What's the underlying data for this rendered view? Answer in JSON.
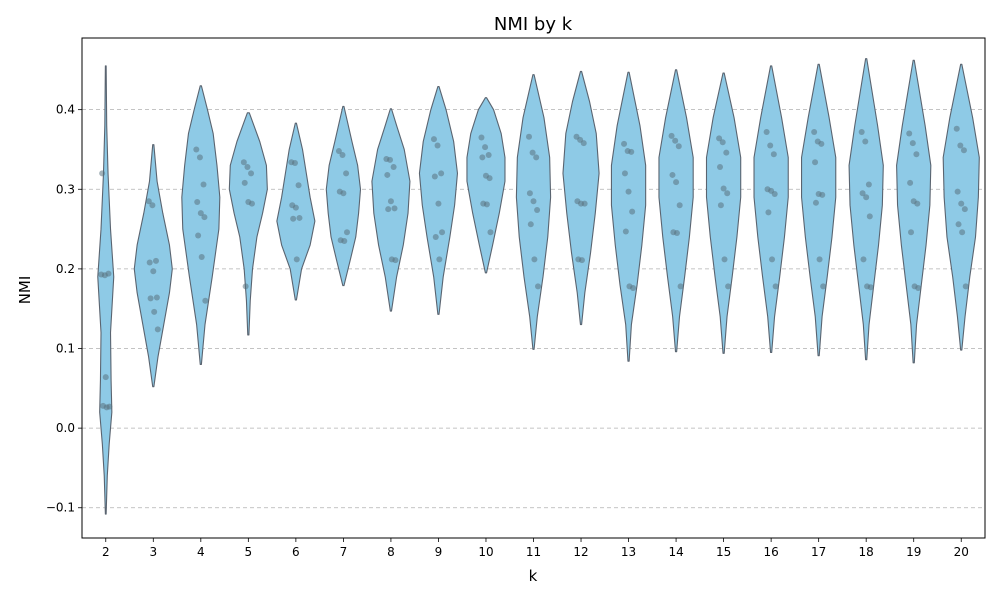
{
  "chart_data": {
    "type": "violin",
    "title": "NMI by k",
    "xlabel": "k",
    "ylabel": "NMI",
    "ylim": [
      -0.138,
      0.49
    ],
    "yticks": [
      -0.1,
      0.0,
      0.1,
      0.2,
      0.3,
      0.4
    ],
    "ytick_labels": [
      "−0.1",
      "0.0",
      "0.1",
      "0.2",
      "0.3",
      "0.4"
    ],
    "grid": "y-dashed",
    "colors": {
      "violin_fill": "#8ecae6",
      "violin_edge": "#5a6470",
      "point": "#5a7380"
    },
    "categories": [
      "2",
      "3",
      "4",
      "5",
      "6",
      "7",
      "8",
      "9",
      "10",
      "11",
      "12",
      "13",
      "14",
      "15",
      "16",
      "17",
      "18",
      "19",
      "20"
    ],
    "violins": [
      {
        "k": "2",
        "min": -0.108,
        "max": 0.455,
        "profile": [
          [
            -0.108,
            0.02
          ],
          [
            -0.06,
            0.08
          ],
          [
            -0.02,
            0.18
          ],
          [
            0.02,
            0.32
          ],
          [
            0.06,
            0.28
          ],
          [
            0.12,
            0.25
          ],
          [
            0.19,
            0.42
          ],
          [
            0.25,
            0.25
          ],
          [
            0.32,
            0.12
          ],
          [
            0.38,
            0.05
          ],
          [
            0.455,
            0.02
          ]
        ]
      },
      {
        "k": "3",
        "min": 0.052,
        "max": 0.356,
        "profile": [
          [
            0.052,
            0.03
          ],
          [
            0.09,
            0.25
          ],
          [
            0.13,
            0.55
          ],
          [
            0.17,
            0.85
          ],
          [
            0.2,
            1.0
          ],
          [
            0.23,
            0.85
          ],
          [
            0.27,
            0.5
          ],
          [
            0.31,
            0.2
          ],
          [
            0.356,
            0.03
          ]
        ]
      },
      {
        "k": "4",
        "min": 0.08,
        "max": 0.43,
        "profile": [
          [
            0.08,
            0.03
          ],
          [
            0.13,
            0.22
          ],
          [
            0.19,
            0.6
          ],
          [
            0.25,
            0.95
          ],
          [
            0.29,
            1.0
          ],
          [
            0.33,
            0.85
          ],
          [
            0.37,
            0.65
          ],
          [
            0.4,
            0.35
          ],
          [
            0.43,
            0.03
          ]
        ]
      },
      {
        "k": "5",
        "min": 0.117,
        "max": 0.396,
        "profile": [
          [
            0.117,
            0.03
          ],
          [
            0.16,
            0.1
          ],
          [
            0.2,
            0.22
          ],
          [
            0.24,
            0.45
          ],
          [
            0.27,
            0.75
          ],
          [
            0.3,
            1.0
          ],
          [
            0.33,
            0.95
          ],
          [
            0.36,
            0.6
          ],
          [
            0.396,
            0.05
          ]
        ]
      },
      {
        "k": "6",
        "min": 0.161,
        "max": 0.383,
        "profile": [
          [
            0.161,
            0.03
          ],
          [
            0.2,
            0.3
          ],
          [
            0.23,
            0.75
          ],
          [
            0.26,
            1.0
          ],
          [
            0.29,
            0.75
          ],
          [
            0.32,
            0.55
          ],
          [
            0.35,
            0.35
          ],
          [
            0.383,
            0.03
          ]
        ]
      },
      {
        "k": "7",
        "min": 0.179,
        "max": 0.404,
        "profile": [
          [
            0.179,
            0.03
          ],
          [
            0.21,
            0.35
          ],
          [
            0.24,
            0.65
          ],
          [
            0.27,
            0.8
          ],
          [
            0.3,
            0.9
          ],
          [
            0.33,
            0.75
          ],
          [
            0.36,
            0.45
          ],
          [
            0.404,
            0.03
          ]
        ]
      },
      {
        "k": "8",
        "min": 0.147,
        "max": 0.401,
        "profile": [
          [
            0.147,
            0.03
          ],
          [
            0.19,
            0.3
          ],
          [
            0.23,
            0.65
          ],
          [
            0.27,
            0.9
          ],
          [
            0.31,
            1.0
          ],
          [
            0.35,
            0.7
          ],
          [
            0.38,
            0.3
          ],
          [
            0.401,
            0.03
          ]
        ]
      },
      {
        "k": "9",
        "min": 0.143,
        "max": 0.429,
        "profile": [
          [
            0.143,
            0.03
          ],
          [
            0.19,
            0.25
          ],
          [
            0.24,
            0.6
          ],
          [
            0.28,
            0.85
          ],
          [
            0.32,
            1.0
          ],
          [
            0.36,
            0.8
          ],
          [
            0.4,
            0.4
          ],
          [
            0.429,
            0.03
          ]
        ]
      },
      {
        "k": "10",
        "min": 0.195,
        "max": 0.415,
        "profile": [
          [
            0.195,
            0.03
          ],
          [
            0.23,
            0.35
          ],
          [
            0.27,
            0.7
          ],
          [
            0.31,
            1.0
          ],
          [
            0.34,
            1.0
          ],
          [
            0.37,
            0.8
          ],
          [
            0.4,
            0.4
          ],
          [
            0.415,
            0.03
          ]
        ]
      },
      {
        "k": "11",
        "min": 0.099,
        "max": 0.444,
        "profile": [
          [
            0.099,
            0.03
          ],
          [
            0.14,
            0.2
          ],
          [
            0.19,
            0.5
          ],
          [
            0.24,
            0.75
          ],
          [
            0.29,
            0.9
          ],
          [
            0.34,
            0.85
          ],
          [
            0.39,
            0.55
          ],
          [
            0.444,
            0.03
          ]
        ]
      },
      {
        "k": "12",
        "min": 0.13,
        "max": 0.448,
        "profile": [
          [
            0.13,
            0.03
          ],
          [
            0.17,
            0.2
          ],
          [
            0.22,
            0.5
          ],
          [
            0.27,
            0.75
          ],
          [
            0.32,
            0.95
          ],
          [
            0.37,
            0.8
          ],
          [
            0.41,
            0.45
          ],
          [
            0.448,
            0.03
          ]
        ]
      },
      {
        "k": "13",
        "min": 0.084,
        "max": 0.447,
        "profile": [
          [
            0.084,
            0.03
          ],
          [
            0.13,
            0.15
          ],
          [
            0.18,
            0.45
          ],
          [
            0.23,
            0.7
          ],
          [
            0.28,
            0.9
          ],
          [
            0.33,
            0.9
          ],
          [
            0.38,
            0.6
          ],
          [
            0.447,
            0.03
          ]
        ]
      },
      {
        "k": "14",
        "min": 0.096,
        "max": 0.45,
        "profile": [
          [
            0.096,
            0.03
          ],
          [
            0.14,
            0.18
          ],
          [
            0.19,
            0.45
          ],
          [
            0.24,
            0.7
          ],
          [
            0.29,
            0.9
          ],
          [
            0.34,
            0.9
          ],
          [
            0.39,
            0.55
          ],
          [
            0.45,
            0.03
          ]
        ]
      },
      {
        "k": "15",
        "min": 0.094,
        "max": 0.446,
        "profile": [
          [
            0.094,
            0.03
          ],
          [
            0.14,
            0.18
          ],
          [
            0.19,
            0.45
          ],
          [
            0.24,
            0.7
          ],
          [
            0.29,
            0.9
          ],
          [
            0.34,
            0.9
          ],
          [
            0.39,
            0.55
          ],
          [
            0.446,
            0.03
          ]
        ]
      },
      {
        "k": "16",
        "min": 0.095,
        "max": 0.455,
        "profile": [
          [
            0.095,
            0.03
          ],
          [
            0.14,
            0.18
          ],
          [
            0.19,
            0.45
          ],
          [
            0.24,
            0.7
          ],
          [
            0.29,
            0.9
          ],
          [
            0.34,
            0.9
          ],
          [
            0.39,
            0.55
          ],
          [
            0.455,
            0.03
          ]
        ]
      },
      {
        "k": "17",
        "min": 0.091,
        "max": 0.457,
        "profile": [
          [
            0.091,
            0.03
          ],
          [
            0.14,
            0.18
          ],
          [
            0.19,
            0.45
          ],
          [
            0.24,
            0.7
          ],
          [
            0.29,
            0.9
          ],
          [
            0.34,
            0.9
          ],
          [
            0.39,
            0.55
          ],
          [
            0.457,
            0.03
          ]
        ]
      },
      {
        "k": "18",
        "min": 0.086,
        "max": 0.464,
        "profile": [
          [
            0.086,
            0.03
          ],
          [
            0.13,
            0.15
          ],
          [
            0.18,
            0.4
          ],
          [
            0.23,
            0.65
          ],
          [
            0.28,
            0.85
          ],
          [
            0.33,
            0.9
          ],
          [
            0.38,
            0.6
          ],
          [
            0.464,
            0.03
          ]
        ]
      },
      {
        "k": "19",
        "min": 0.082,
        "max": 0.462,
        "profile": [
          [
            0.082,
            0.03
          ],
          [
            0.13,
            0.15
          ],
          [
            0.18,
            0.4
          ],
          [
            0.23,
            0.65
          ],
          [
            0.28,
            0.85
          ],
          [
            0.33,
            0.9
          ],
          [
            0.38,
            0.6
          ],
          [
            0.462,
            0.03
          ]
        ]
      },
      {
        "k": "20",
        "min": 0.098,
        "max": 0.457,
        "profile": [
          [
            0.098,
            0.03
          ],
          [
            0.14,
            0.2
          ],
          [
            0.19,
            0.45
          ],
          [
            0.24,
            0.75
          ],
          [
            0.29,
            0.9
          ],
          [
            0.34,
            0.95
          ],
          [
            0.39,
            0.6
          ],
          [
            0.457,
            0.03
          ]
        ]
      }
    ],
    "points": [
      {
        "k": "2",
        "values": [
          0.193,
          0.192,
          0.194,
          0.32,
          0.064,
          0.027,
          0.028,
          0.026
        ]
      },
      {
        "k": "3",
        "values": [
          0.285,
          0.28,
          0.21,
          0.208,
          0.197,
          0.164,
          0.163,
          0.146,
          0.124
        ]
      },
      {
        "k": "4",
        "values": [
          0.35,
          0.34,
          0.306,
          0.284,
          0.27,
          0.265,
          0.242,
          0.215,
          0.16
        ]
      },
      {
        "k": "5",
        "values": [
          0.334,
          0.328,
          0.32,
          0.308,
          0.284,
          0.282,
          0.178
        ]
      },
      {
        "k": "6",
        "values": [
          0.334,
          0.333,
          0.305,
          0.28,
          0.277,
          0.264,
          0.263,
          0.212
        ]
      },
      {
        "k": "7",
        "values": [
          0.348,
          0.343,
          0.32,
          0.297,
          0.295,
          0.246,
          0.236,
          0.235
        ]
      },
      {
        "k": "8",
        "values": [
          0.338,
          0.337,
          0.328,
          0.318,
          0.285,
          0.276,
          0.275,
          0.212,
          0.211
        ]
      },
      {
        "k": "9",
        "values": [
          0.363,
          0.355,
          0.32,
          0.316,
          0.282,
          0.246,
          0.24,
          0.212
        ]
      },
      {
        "k": "10",
        "values": [
          0.365,
          0.353,
          0.343,
          0.34,
          0.317,
          0.314,
          0.282,
          0.281,
          0.246
        ]
      },
      {
        "k": "11",
        "values": [
          0.366,
          0.346,
          0.34,
          0.295,
          0.285,
          0.274,
          0.256,
          0.212,
          0.178
        ]
      },
      {
        "k": "12",
        "values": [
          0.366,
          0.362,
          0.358,
          0.285,
          0.282,
          0.282,
          0.212,
          0.211
        ]
      },
      {
        "k": "13",
        "values": [
          0.357,
          0.348,
          0.347,
          0.32,
          0.297,
          0.272,
          0.247,
          0.178,
          0.176
        ]
      },
      {
        "k": "14",
        "values": [
          0.367,
          0.361,
          0.354,
          0.318,
          0.309,
          0.28,
          0.246,
          0.245,
          0.178
        ]
      },
      {
        "k": "15",
        "values": [
          0.364,
          0.359,
          0.346,
          0.328,
          0.301,
          0.295,
          0.28,
          0.212,
          0.178
        ]
      },
      {
        "k": "16",
        "values": [
          0.372,
          0.355,
          0.344,
          0.3,
          0.298,
          0.294,
          0.271,
          0.212,
          0.178
        ]
      },
      {
        "k": "17",
        "values": [
          0.372,
          0.36,
          0.357,
          0.334,
          0.294,
          0.293,
          0.283,
          0.212,
          0.178
        ]
      },
      {
        "k": "18",
        "values": [
          0.372,
          0.36,
          0.306,
          0.295,
          0.29,
          0.266,
          0.212,
          0.178,
          0.177
        ]
      },
      {
        "k": "19",
        "values": [
          0.37,
          0.358,
          0.344,
          0.308,
          0.285,
          0.282,
          0.246,
          0.178,
          0.176
        ]
      },
      {
        "k": "20",
        "values": [
          0.376,
          0.355,
          0.349,
          0.297,
          0.282,
          0.275,
          0.256,
          0.246,
          0.178
        ]
      }
    ]
  }
}
